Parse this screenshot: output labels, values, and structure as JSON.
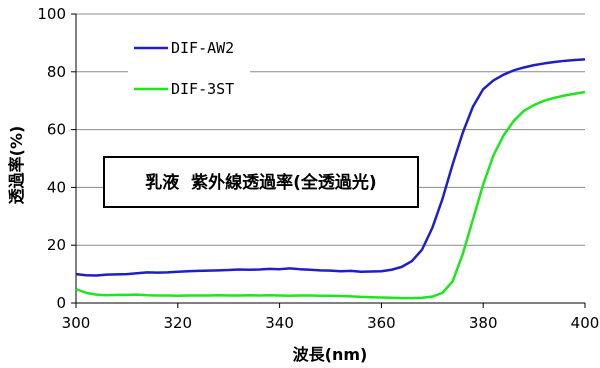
{
  "chart_data": {
    "type": "line",
    "xlabel": "波長(nm)",
    "ylabel": "透過率(%)",
    "xlim": [
      300,
      400
    ],
    "ylim": [
      0,
      100
    ],
    "x_ticks": [
      "300",
      "320",
      "340",
      "360",
      "380",
      "400"
    ],
    "y_ticks": [
      "0",
      "20",
      "40",
      "60",
      "80",
      "100"
    ],
    "grid": "horizontal",
    "legend_position": "top-left",
    "annotation": "乳液  紫外線透過率(全透過光)",
    "series": [
      {
        "name": "DIF-AW2",
        "color": "#1f1fc8",
        "x": [
          300,
          302,
          304,
          306,
          308,
          310,
          312,
          314,
          316,
          318,
          320,
          322,
          324,
          326,
          328,
          330,
          332,
          334,
          336,
          338,
          340,
          342,
          344,
          346,
          348,
          350,
          352,
          354,
          356,
          358,
          360,
          362,
          364,
          366,
          368,
          370,
          372,
          374,
          376,
          378,
          380,
          382,
          384,
          386,
          388,
          390,
          392,
          394,
          396,
          398,
          400
        ],
        "y": [
          10,
          9.6,
          9.5,
          9.8,
          9.9,
          10.0,
          10.3,
          10.6,
          10.5,
          10.6,
          10.8,
          11.0,
          11.1,
          11.2,
          11.3,
          11.4,
          11.6,
          11.5,
          11.6,
          11.8,
          11.7,
          12.0,
          11.7,
          11.5,
          11.3,
          11.2,
          11.0,
          11.1,
          10.8,
          10.9,
          11.0,
          11.5,
          12.5,
          14.5,
          18.5,
          26,
          36,
          48,
          59,
          68,
          74,
          77,
          79,
          80.5,
          81.5,
          82.3,
          82.9,
          83.4,
          83.8,
          84.1,
          84.3
        ]
      },
      {
        "name": "DIF-3ST",
        "color": "#1ee61e",
        "x": [
          300,
          302,
          304,
          306,
          308,
          310,
          312,
          314,
          316,
          318,
          320,
          322,
          324,
          326,
          328,
          330,
          332,
          334,
          336,
          338,
          340,
          342,
          344,
          346,
          348,
          350,
          352,
          354,
          356,
          358,
          360,
          362,
          364,
          366,
          368,
          370,
          372,
          374,
          376,
          378,
          380,
          382,
          384,
          386,
          388,
          390,
          392,
          394,
          396,
          398,
          400
        ],
        "y": [
          4.8,
          3.5,
          2.9,
          2.7,
          2.8,
          2.8,
          2.9,
          2.7,
          2.6,
          2.6,
          2.5,
          2.6,
          2.6,
          2.6,
          2.7,
          2.6,
          2.6,
          2.7,
          2.6,
          2.7,
          2.6,
          2.5,
          2.6,
          2.6,
          2.5,
          2.5,
          2.4,
          2.3,
          2.1,
          2.0,
          1.9,
          1.8,
          1.7,
          1.7,
          1.8,
          2.2,
          3.5,
          7.5,
          17,
          29,
          41,
          51,
          58,
          63,
          66.5,
          68.5,
          70,
          71,
          71.8,
          72.4,
          73
        ]
      }
    ]
  }
}
